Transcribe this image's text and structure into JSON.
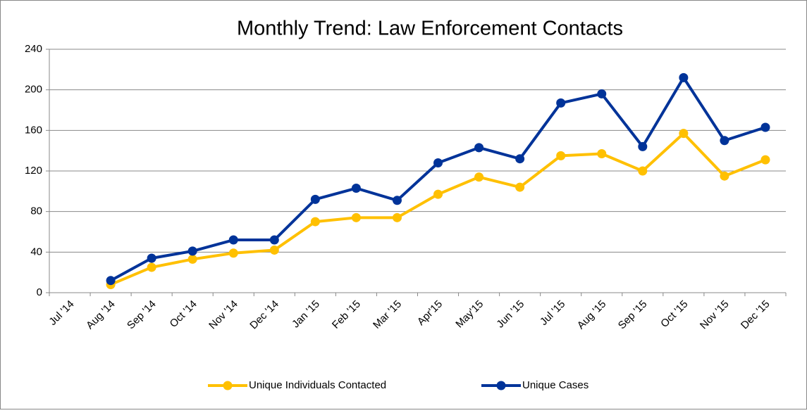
{
  "chart_data": {
    "type": "line",
    "title": "Monthly Trend: Law Enforcement Contacts",
    "categories": [
      "Jul '14",
      "Aug '14",
      "Sep '14",
      "Oct '14",
      "Nov '14",
      "Dec '14",
      "Jan '15",
      "Feb '15",
      "Mar '15",
      "Apr'15",
      "May'15",
      "Jun '15",
      "Jul '15",
      "Aug '15",
      "Sep '15",
      "Oct '15",
      "Nov '15",
      "Dec '15"
    ],
    "series": [
      {
        "name": "Unique Individuals Contacted",
        "color": "#ffc000",
        "values": [
          null,
          8,
          25,
          33,
          39,
          42,
          70,
          74,
          74,
          97,
          114,
          104,
          135,
          137,
          120,
          157,
          115,
          131
        ]
      },
      {
        "name": "Unique Cases",
        "color": "#003399",
        "values": [
          null,
          12,
          34,
          41,
          52,
          52,
          92,
          103,
          91,
          128,
          143,
          132,
          187,
          196,
          144,
          212,
          150,
          163
        ]
      }
    ],
    "ylim": [
      0,
      240
    ],
    "yticks": [
      0,
      40,
      80,
      120,
      160,
      200,
      240
    ],
    "grid": true,
    "legend": "bottom"
  }
}
